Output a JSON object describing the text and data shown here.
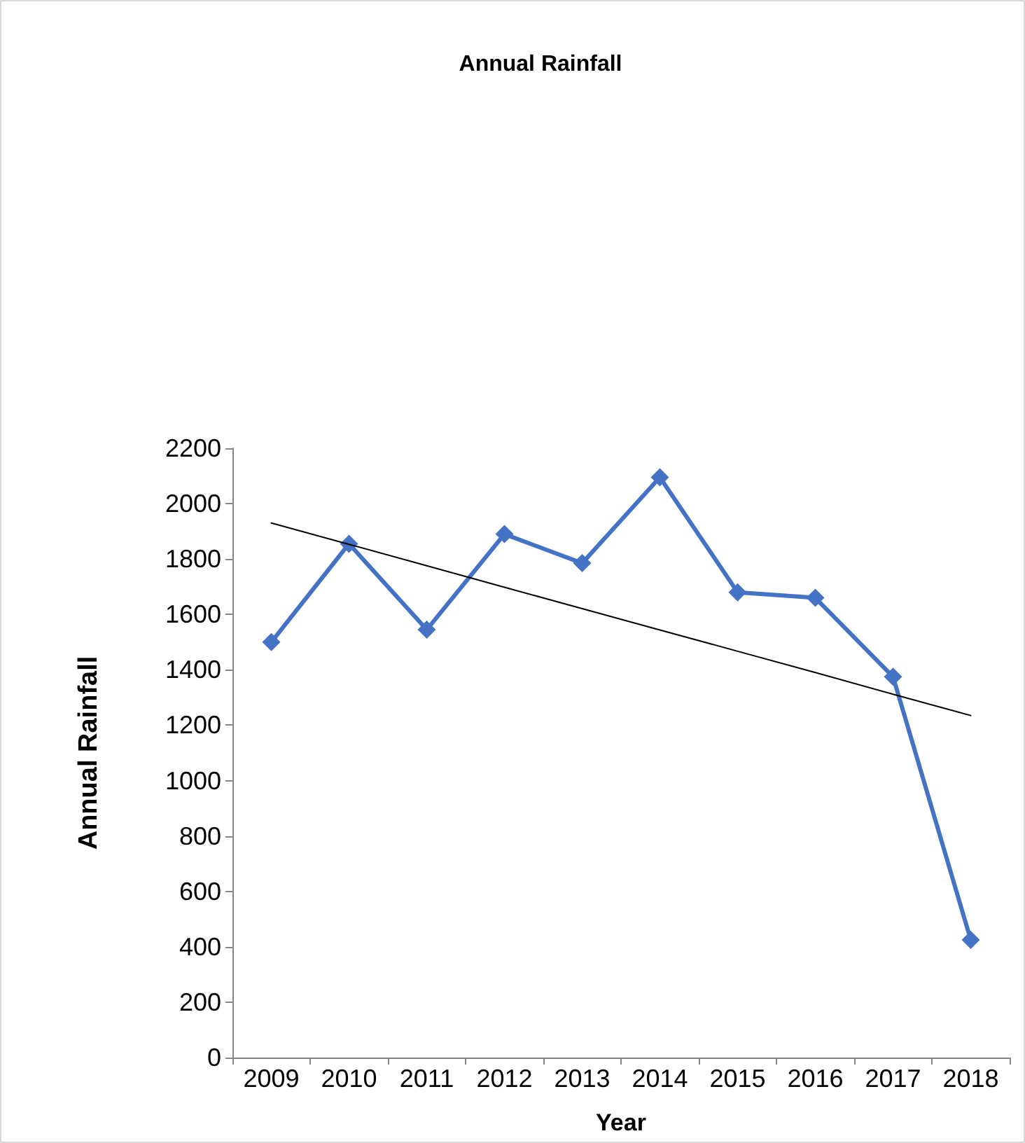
{
  "chart_data": {
    "type": "line",
    "title": "Annual Rainfall",
    "xlabel": "Year",
    "ylabel": "Annual Rainfall",
    "categories": [
      "2009",
      "2010",
      "2011",
      "2012",
      "2013",
      "2014",
      "2015",
      "2016",
      "2017",
      "2018"
    ],
    "series": [
      {
        "color": "#4472c4",
        "marker": "diamond",
        "values": [
          1500,
          1855,
          1545,
          1890,
          1785,
          2095,
          1680,
          1660,
          1375,
          425
        ]
      },
      {
        "type": "line",
        "color": "#000000",
        "marker": "none",
        "values": [
          1930,
          1853,
          1776,
          1698,
          1621,
          1544,
          1467,
          1390,
          1312,
          1235
        ]
      }
    ],
    "ylim": [
      0,
      2200
    ],
    "yticks": [
      0,
      200,
      400,
      600,
      800,
      1000,
      1200,
      1400,
      1600,
      1800,
      2000,
      2200
    ],
    "grid": false
  }
}
